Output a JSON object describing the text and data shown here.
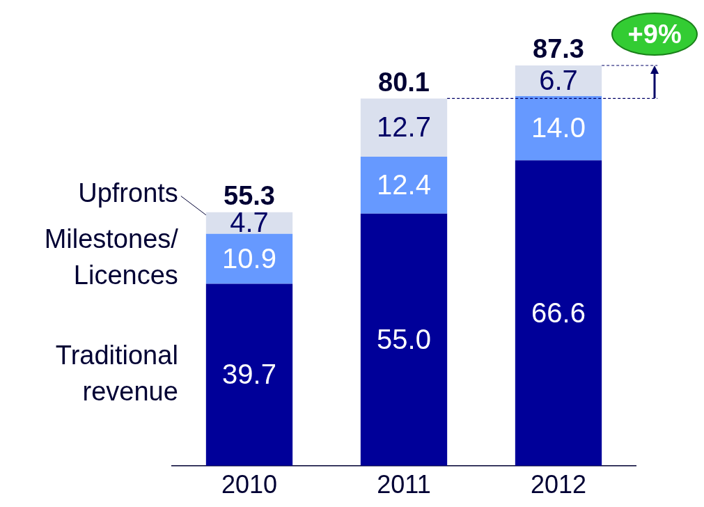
{
  "chart_data": {
    "type": "bar",
    "stacked": true,
    "categories": [
      "2010",
      "2011",
      "2012"
    ],
    "series": [
      {
        "name": "Traditional revenue",
        "color": "#000099",
        "values": [
          39.7,
          55.0,
          66.6
        ],
        "value_labels": [
          "39.7",
          "55.0",
          "66.6"
        ]
      },
      {
        "name": "Milestones/ Licences",
        "color": "#6699ff",
        "values": [
          10.9,
          12.4,
          14.0
        ],
        "value_labels": [
          "10.9",
          "12.4",
          "14.0"
        ]
      },
      {
        "name": "Upfronts",
        "color": "#dae0ee",
        "values": [
          4.7,
          12.7,
          6.7
        ],
        "value_labels": [
          "4.7",
          "12.7",
          "6.7"
        ]
      }
    ],
    "totals": [
      "55.3",
      "80.1",
      "87.3"
    ],
    "legend": false,
    "grid": false,
    "annotations": [
      "+9%"
    ]
  }
}
